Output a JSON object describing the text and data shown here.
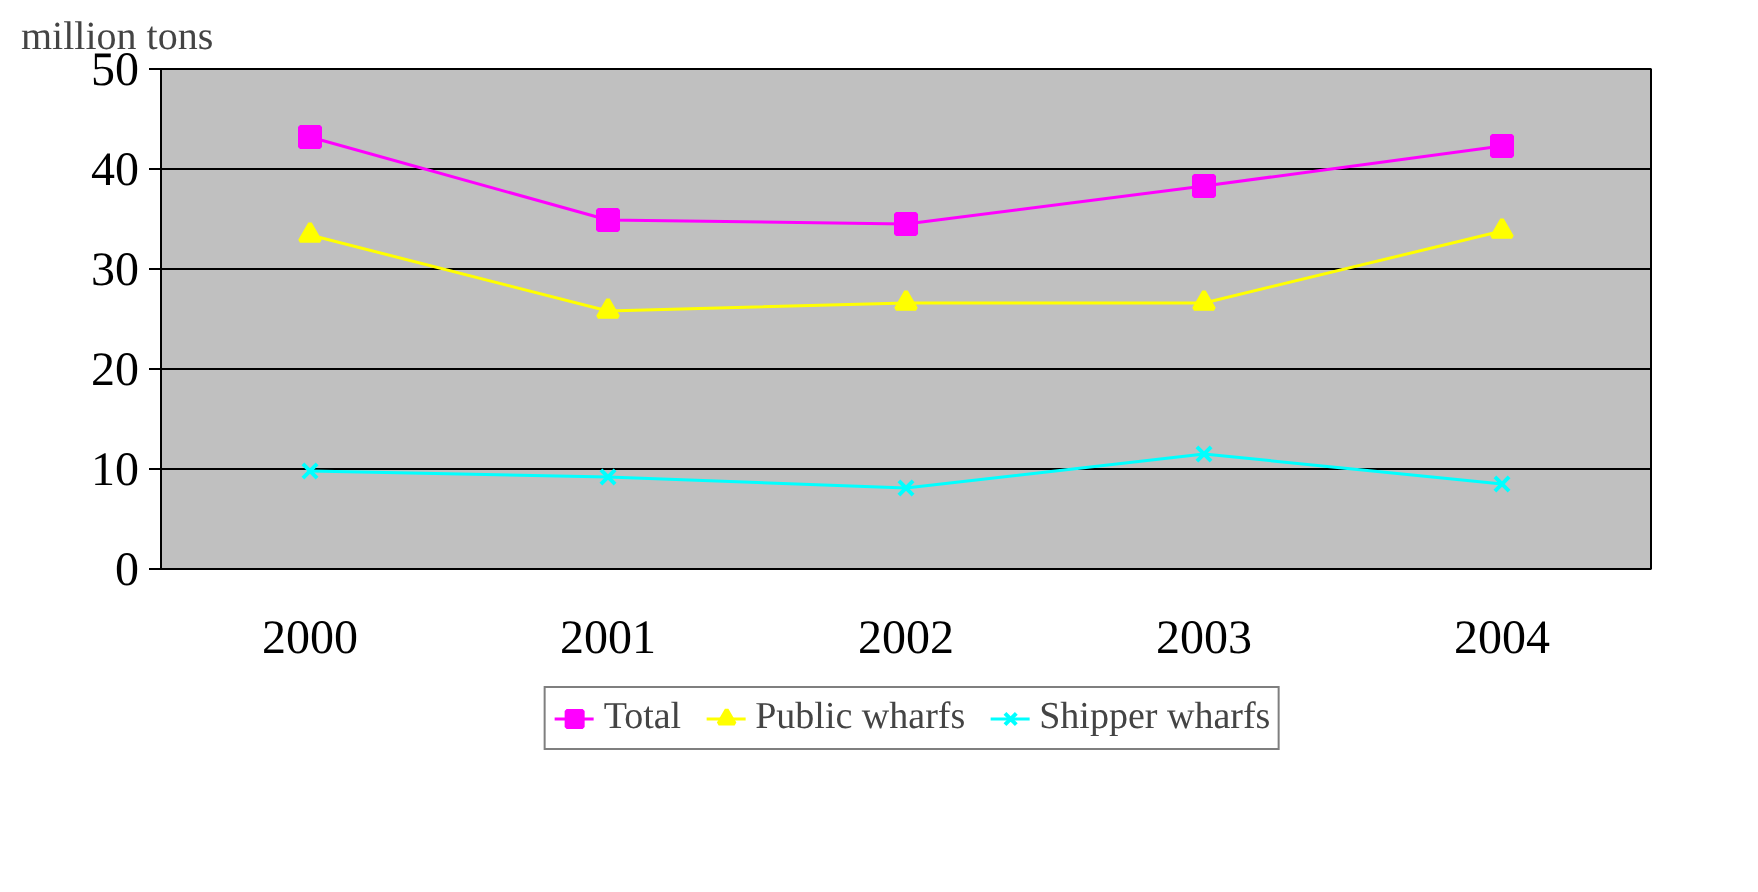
{
  "chart_data": {
    "type": "line",
    "ylabel": "million tons",
    "categories": [
      "2000",
      "2001",
      "2002",
      "2003",
      "2004"
    ],
    "series": [
      {
        "name": "Total",
        "color": "#ff00ff",
        "marker": "square",
        "values": [
          43.2,
          34.9,
          34.5,
          38.3,
          42.3
        ]
      },
      {
        "name": "Public wharfs",
        "color": "#ffff00",
        "marker": "triangle",
        "values": [
          33.4,
          25.8,
          26.6,
          26.6,
          33.8
        ]
      },
      {
        "name": "Shipper wharfs",
        "color": "#00ffff",
        "marker": "x",
        "values": [
          9.8,
          9.2,
          8.1,
          11.5,
          8.5
        ]
      }
    ],
    "ylim": [
      0,
      50
    ],
    "yticks": [
      0,
      10,
      20,
      30,
      40,
      50
    ],
    "grid": "y",
    "legend": "bottom"
  }
}
